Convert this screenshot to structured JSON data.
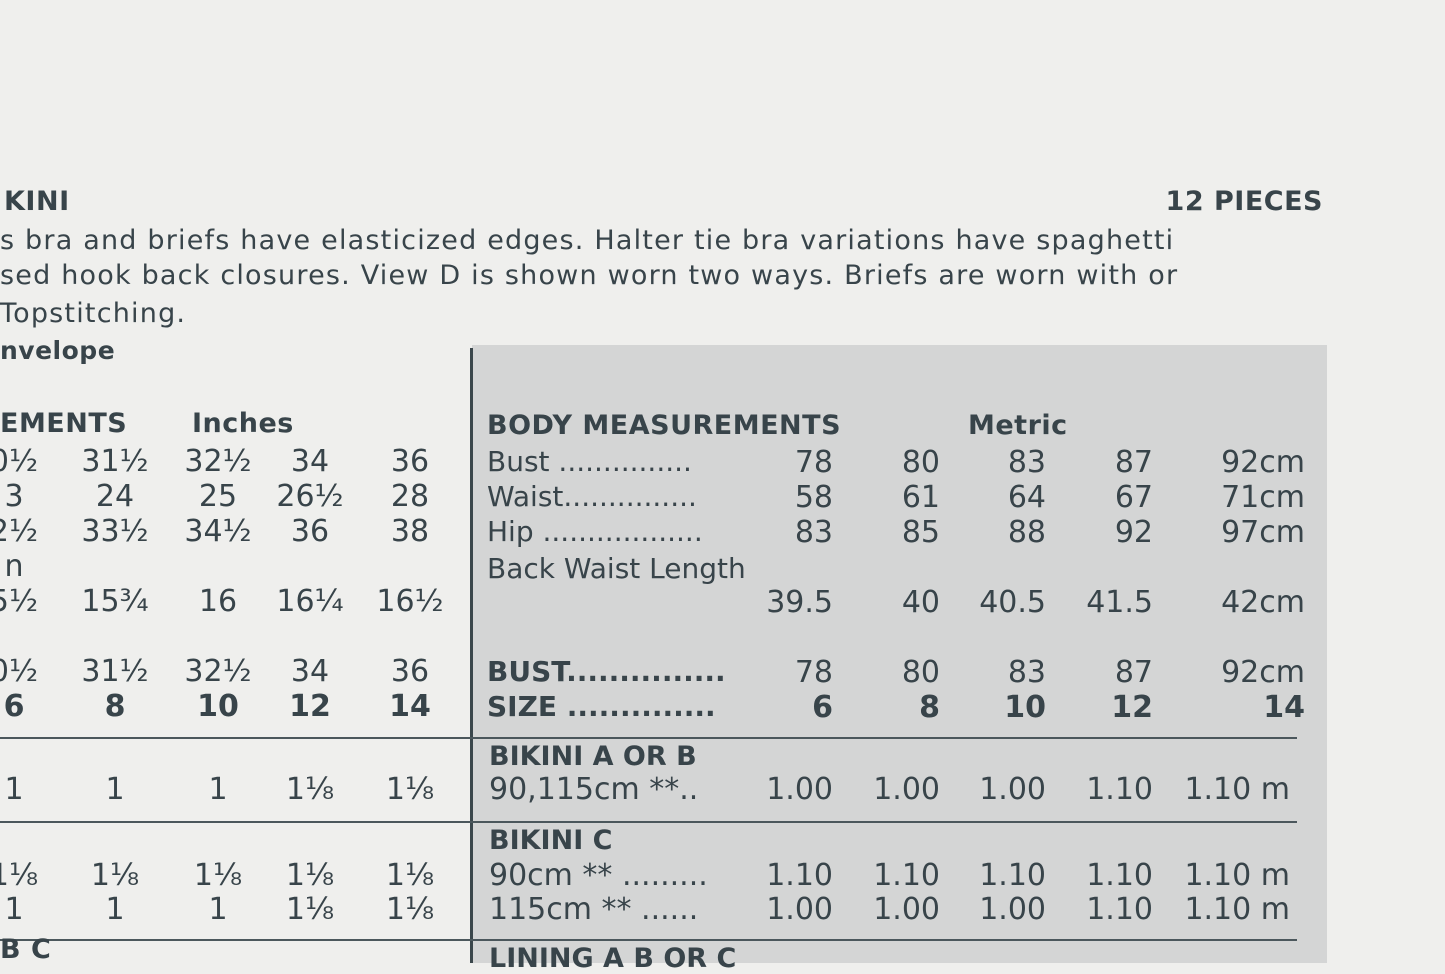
{
  "header": {
    "title": "KINI",
    "pieces": "12 PIECES"
  },
  "description": [
    "s bra and briefs have elasticized edges. Halter tie bra variations have spaghetti",
    "sed hook back closures. View D is shown worn two ways. Briefs are worn with or",
    "Topstitching."
  ],
  "envelope_label": "nvelope",
  "inches_table": {
    "heading": "EMENTS",
    "unit": "Inches",
    "rows": [
      [
        "0½",
        "31½",
        "32½",
        "34",
        "36"
      ],
      [
        "3",
        "24",
        "25",
        "26½",
        "28"
      ],
      [
        "2½",
        "33½",
        "34½",
        "36",
        "38"
      ],
      [
        "n",
        "",
        "",
        "",
        ""
      ],
      [
        "5½",
        "15¾",
        "16",
        "16¼",
        "16½"
      ],
      [
        "0½",
        "31½",
        "32½",
        "34",
        "36"
      ],
      [
        "6",
        "8",
        "10",
        "12",
        "14"
      ],
      [
        "1",
        "1",
        "1",
        "1⅛",
        "1⅛"
      ],
      [
        "1⅛",
        "1⅛",
        "1⅛",
        "1⅛",
        "1⅛"
      ],
      [
        "1",
        "1",
        "1",
        "1⅛",
        "1⅛"
      ]
    ],
    "cut_label": "B C"
  },
  "metric_table": {
    "heading": "BODY MEASUREMENTS",
    "unit": "Metric",
    "rows": [
      {
        "label": "Bust ...............",
        "values": [
          "78",
          "80",
          "83",
          "87",
          "92cm"
        ]
      },
      {
        "label": "Waist...............",
        "values": [
          "58",
          "61",
          "64",
          "67",
          "71cm"
        ]
      },
      {
        "label": "Hip ..................",
        "values": [
          "83",
          "85",
          "88",
          "92",
          "97cm"
        ]
      },
      {
        "label": "Back Waist Length",
        "values": [
          "",
          "",
          "",
          "",
          ""
        ]
      },
      {
        "label": "",
        "values": [
          "39.5",
          "40",
          "40.5",
          "41.5",
          "42cm"
        ]
      },
      {
        "label": "BUST...............",
        "values": [
          "78",
          "80",
          "83",
          "87",
          "92cm"
        ]
      },
      {
        "label": "SIZE ..............",
        "values": [
          "6",
          "8",
          "10",
          "12",
          "14"
        ]
      }
    ],
    "sections": [
      {
        "title": "BIKINI A OR B",
        "rows": [
          {
            "label": "90,115cm **..",
            "values": [
              "1.00",
              "1.00",
              "1.00",
              "1.10",
              "1.10 m"
            ]
          }
        ]
      },
      {
        "title": "BIKINI C",
        "rows": [
          {
            "label": "90cm ** .........",
            "values": [
              "1.10",
              "1.10",
              "1.10",
              "1.10",
              "1.10 m"
            ]
          },
          {
            "label": "115cm ** ......",
            "values": [
              "1.00",
              "1.00",
              "1.00",
              "1.10",
              "1.10 m"
            ]
          }
        ]
      },
      {
        "title": "LINING A B OR C",
        "rows": []
      }
    ]
  }
}
